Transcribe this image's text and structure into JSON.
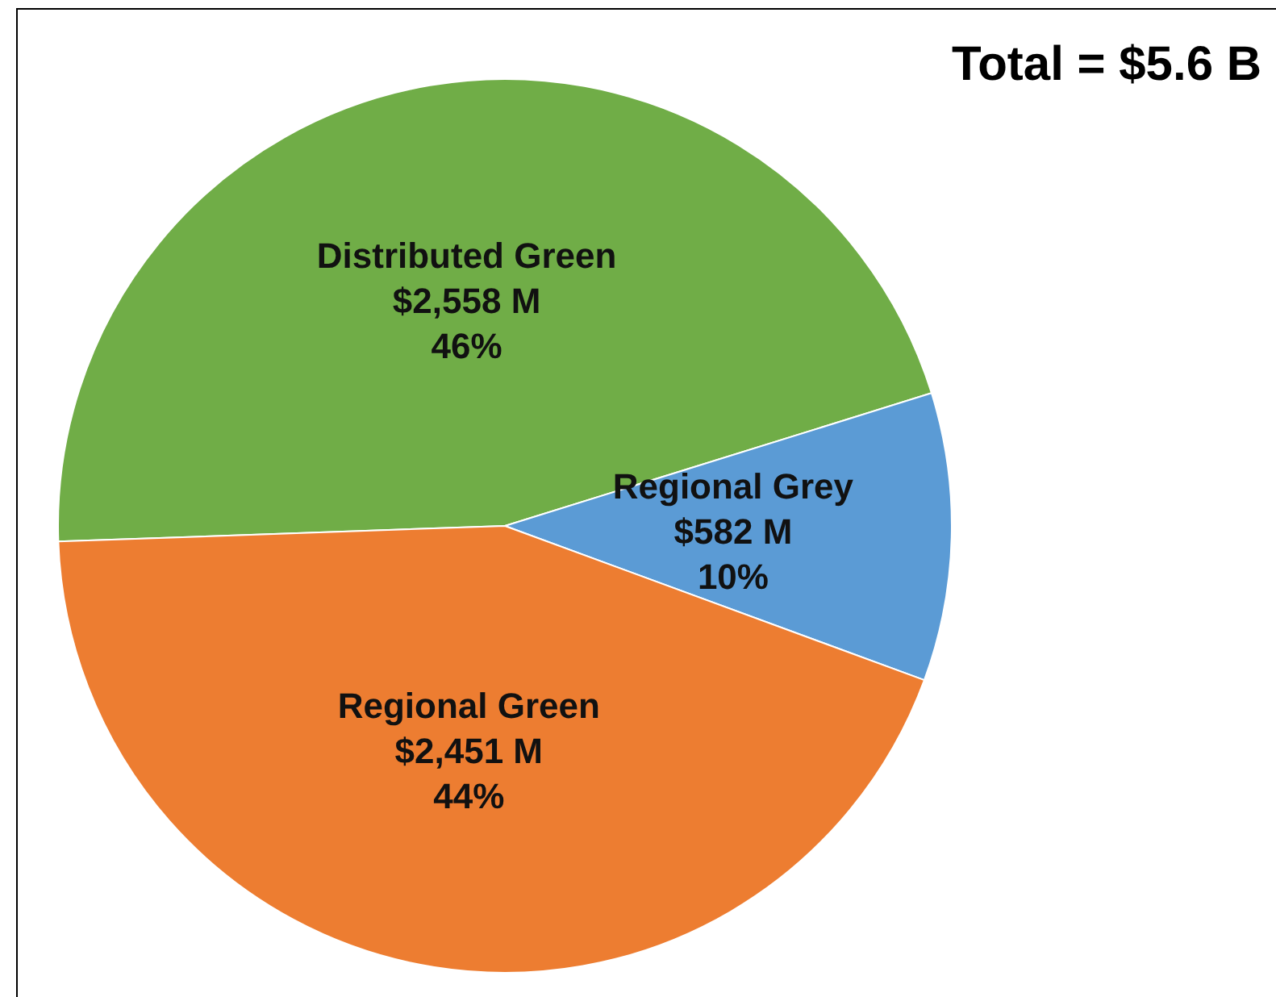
{
  "chart_data": {
    "type": "pie",
    "title": "Total = $5.6 B",
    "categories": [
      "Distributed Green",
      "Regional Grey",
      "Regional Green"
    ],
    "values": [
      2558,
      582,
      2451
    ],
    "colors": [
      "#70ad47",
      "#5b9bd5",
      "#ed7d31"
    ],
    "value_labels": [
      "$2,558 M\n46%",
      "$582 M\n10%",
      "$2,451 M\n44%"
    ],
    "legend": false
  }
}
